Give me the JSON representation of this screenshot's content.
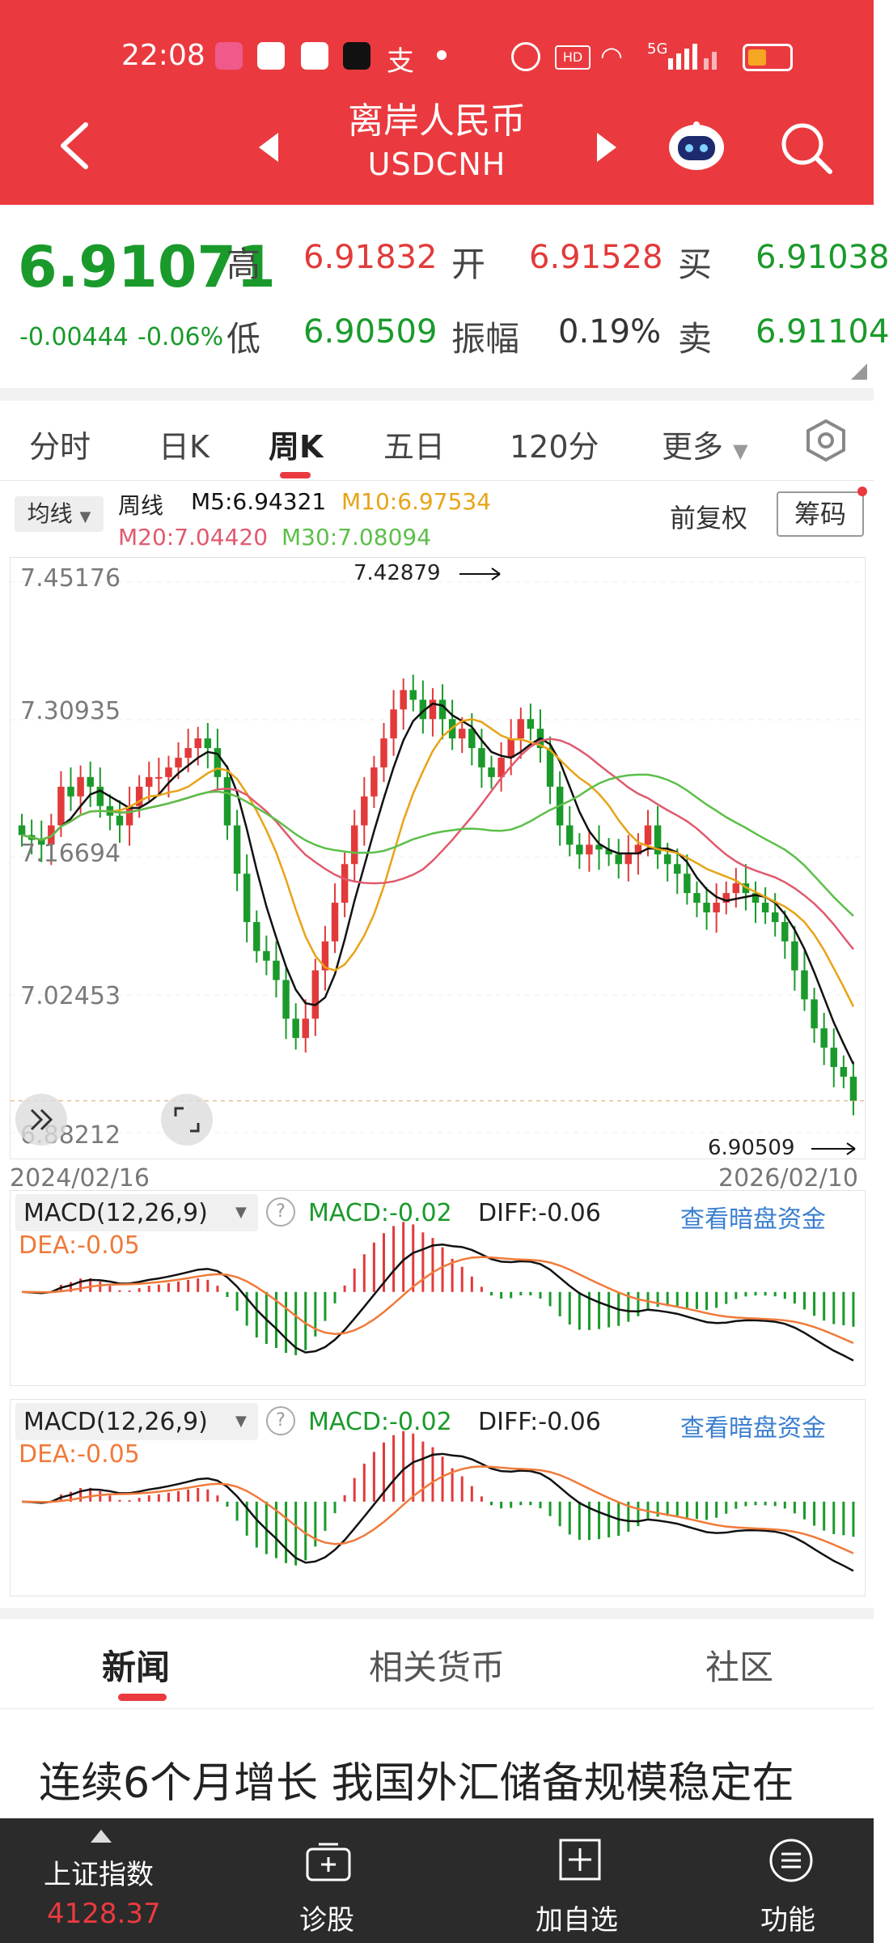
{
  "status_bar": {
    "time": "22:08",
    "network": "5G"
  },
  "header": {
    "title": "离岸人民币",
    "subtitle": "USDCNH"
  },
  "quote": {
    "price": "6.91071",
    "change": "-0.00444",
    "change_pct": "-0.06%",
    "high_label": "高",
    "high": "6.91832",
    "open_label": "开",
    "open": "6.91528",
    "buy_label": "买",
    "buy": "6.91038",
    "low_label": "低",
    "low": "6.90509",
    "amp_label": "振幅",
    "amplitude": "0.19%",
    "sell_label": "卖",
    "sell": "6.91104"
  },
  "tabs": [
    {
      "label": "分时"
    },
    {
      "label": "日K"
    },
    {
      "label": "周K",
      "active": true
    },
    {
      "label": "五日"
    },
    {
      "label": "120分"
    },
    {
      "label": "更多"
    }
  ],
  "ma": {
    "type_button": "均线",
    "period": "周线",
    "m5": "M5:6.94321",
    "m10": "M10:6.97534",
    "m20": "M20:7.04420",
    "m30": "M30:7.08094",
    "adjust": "前复权",
    "chips_button": "筹码"
  },
  "kchart": {
    "y_labels": [
      "7.45176",
      "7.30935",
      "7.16694",
      "7.02453",
      "6.88212"
    ],
    "max_annotation": "7.42879",
    "min_annotation": "6.90509",
    "start_date": "2024/02/16",
    "end_date": "2026/02/10"
  },
  "chart_data": {
    "type": "candlestick",
    "ylim": [
      6.88212,
      7.45176
    ],
    "x_range": [
      "2024/02/16",
      "2026/02/10"
    ],
    "close": [
      7.19,
      7.185,
      7.18,
      7.2,
      7.24,
      7.23,
      7.25,
      7.24,
      7.22,
      7.21,
      7.2,
      7.22,
      7.24,
      7.25,
      7.25,
      7.26,
      7.27,
      7.28,
      7.29,
      7.28,
      7.25,
      7.2,
      7.15,
      7.1,
      7.07,
      7.06,
      7.04,
      7.0,
      6.98,
      7.0,
      7.05,
      7.08,
      7.12,
      7.16,
      7.2,
      7.23,
      7.26,
      7.29,
      7.32,
      7.34,
      7.33,
      7.31,
      7.33,
      7.31,
      7.29,
      7.3,
      7.28,
      7.26,
      7.25,
      7.27,
      7.29,
      7.31,
      7.3,
      7.28,
      7.24,
      7.2,
      7.18,
      7.17,
      7.18,
      7.175,
      7.17,
      7.16,
      7.17,
      7.18,
      7.2,
      7.17,
      7.16,
      7.15,
      7.13,
      7.12,
      7.11,
      7.12,
      7.13,
      7.14,
      7.13,
      7.12,
      7.11,
      7.1,
      7.08,
      7.05,
      7.02,
      6.99,
      6.97,
      6.95,
      6.94,
      6.915
    ],
    "series": [
      {
        "name": "M5",
        "value": "6.94321"
      },
      {
        "name": "M10",
        "value": "6.97534"
      },
      {
        "name": "M20",
        "value": "7.04420"
      },
      {
        "name": "M30",
        "value": "7.08094"
      }
    ]
  },
  "macd": {
    "title": "MACD(12,26,9)",
    "macd": "MACD:-0.02",
    "diff": "DIFF:-0.06",
    "dea": "DEA:-0.05",
    "link": "查看暗盘资金"
  },
  "news_tabs": [
    {
      "label": "新闻",
      "active": true
    },
    {
      "label": "相关货币"
    },
    {
      "label": "社区"
    }
  ],
  "headline": "连续6个月增长 我国外汇储备规模稳定在",
  "bottom_bar": {
    "index_name": "上证指数",
    "index_value": "4128.37",
    "items": [
      {
        "label": "诊股"
      },
      {
        "label": "加自选"
      },
      {
        "label": "功能"
      }
    ]
  },
  "colors": {
    "brand_red": "#ea3a3f",
    "up": "#e23a3a",
    "down": "#1a9a2b",
    "m5": "#111111",
    "m10": "#e8a317",
    "m20": "#e05a6e",
    "m30": "#5cbf4a"
  }
}
